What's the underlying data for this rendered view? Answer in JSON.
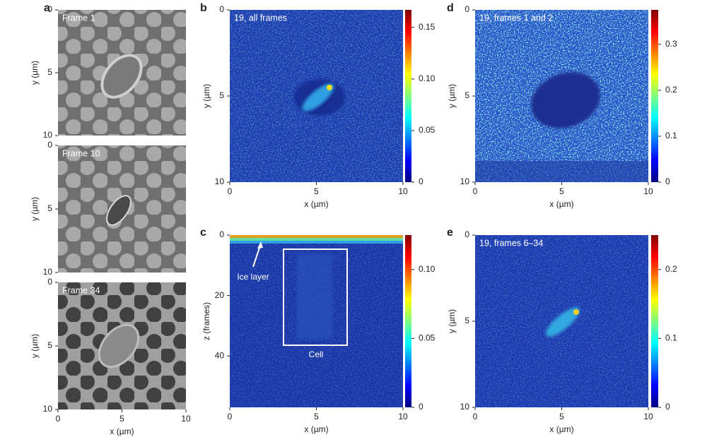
{
  "figure": {
    "panels": [
      {
        "letter": "a",
        "xlabel": "x (µm)",
        "xlim": [
          0,
          10
        ],
        "xticks": [
          0,
          5,
          10
        ],
        "images": [
          {
            "title": "Frame 1",
            "ylabel": "y (µm)",
            "ylim": [
              0,
              10
            ],
            "yticks": [
              0,
              5,
              10
            ]
          },
          {
            "title": "Frame 10",
            "ylabel": "y (µm)",
            "ylim": [
              0,
              10
            ],
            "yticks": [
              0,
              5,
              10
            ]
          },
          {
            "title": "Frame 34",
            "ylabel": "y (µm)",
            "ylim": [
              0,
              10
            ],
            "yticks": [
              0,
              5,
              10
            ]
          }
        ]
      },
      {
        "letter": "b",
        "title": "19, all frames",
        "xlabel": "x (µm)",
        "ylabel": "y (µm)",
        "xlim": [
          0,
          10
        ],
        "xticks": [
          0,
          5,
          10
        ],
        "ylim": [
          0,
          10
        ],
        "yticks": [
          0,
          5,
          10
        ],
        "colorbar": {
          "lim": [
            0,
            0.167
          ],
          "ticks": [
            0,
            0.05,
            {
              "value": 0.1,
              "label": "0.10"
            },
            0.15
          ]
        }
      },
      {
        "letter": "c",
        "xlabel": "x (µm)",
        "ylabel": "z (frames)",
        "xlim": [
          0,
          10
        ],
        "xticks": [
          0,
          5,
          10
        ],
        "ylim": [
          0,
          57
        ],
        "yticks": [
          0,
          20,
          40
        ],
        "annotations": [
          "Ice layer",
          "Cell"
        ],
        "colorbar": {
          "lim": [
            0,
            0.125
          ],
          "ticks": [
            0,
            0.05,
            {
              "value": 0.1,
              "label": "0.10"
            }
          ]
        }
      },
      {
        "letter": "d",
        "title": "19, frames 1 and 2",
        "xlabel": "x (µm)",
        "ylabel": "y (µm)",
        "xlim": [
          0,
          10
        ],
        "xticks": [
          0,
          5,
          10
        ],
        "ylim": [
          0,
          10
        ],
        "yticks": [
          0,
          5,
          10
        ],
        "colorbar": {
          "lim": [
            0,
            0.375
          ],
          "ticks": [
            0,
            0.1,
            0.2,
            0.3
          ]
        }
      },
      {
        "letter": "e",
        "title": "19, frames 6–34",
        "xlabel": "x (µm)",
        "ylabel": "y (µm)",
        "xlim": [
          0,
          10
        ],
        "xticks": [
          0,
          5,
          10
        ],
        "ylim": [
          0,
          10
        ],
        "yticks": [
          0,
          5,
          10
        ],
        "colorbar": {
          "lim": [
            0,
            0.25
          ],
          "ticks": [
            0,
            0.1,
            0.2
          ]
        }
      }
    ]
  }
}
